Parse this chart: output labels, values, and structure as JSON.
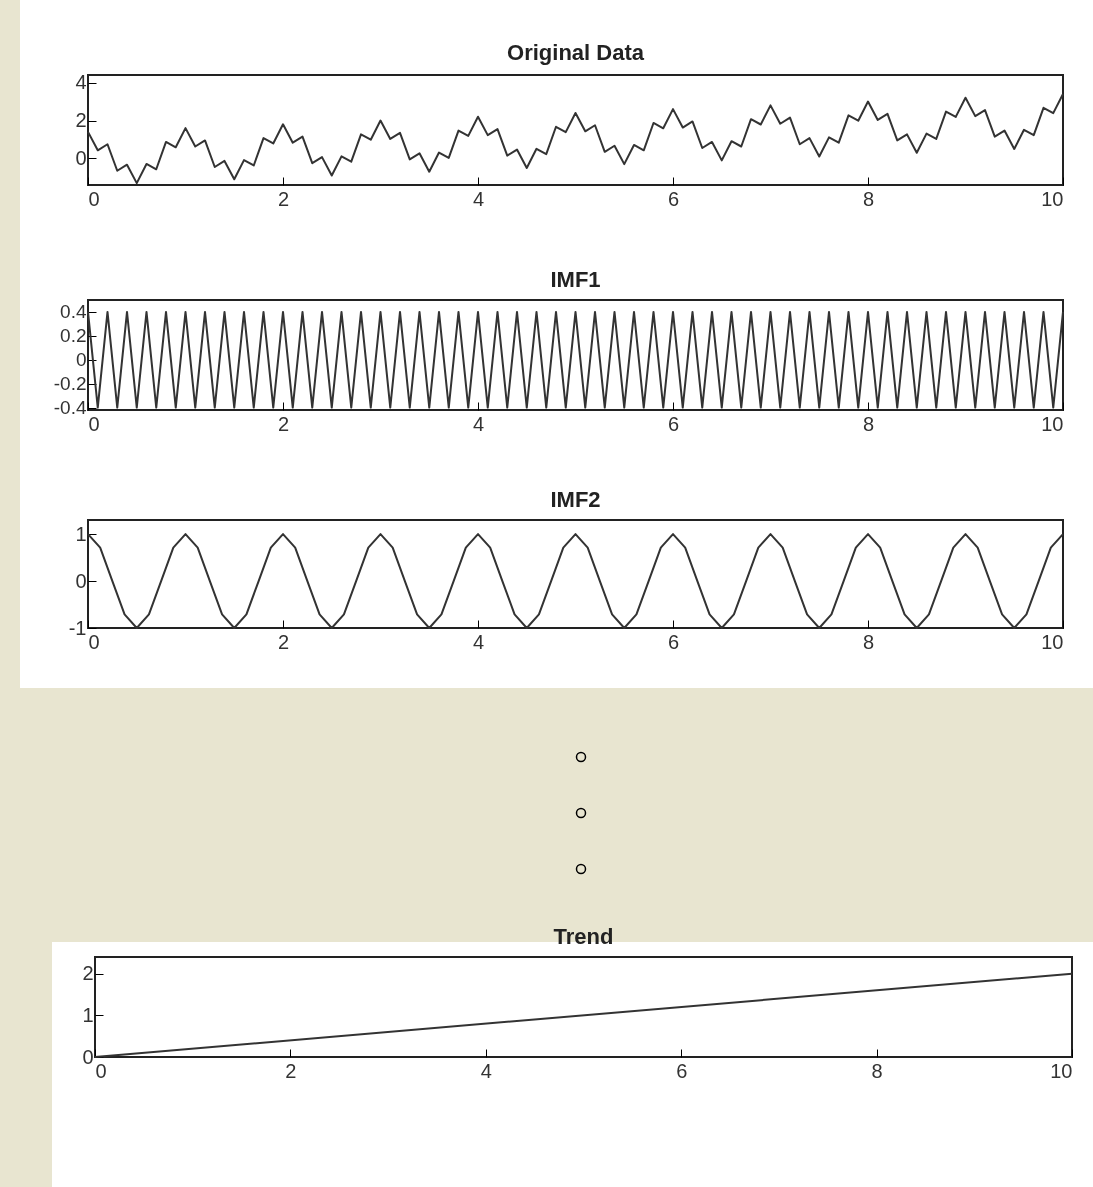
{
  "chart_data": [
    {
      "type": "line",
      "title": "Original Data",
      "xlim": [
        0,
        10
      ],
      "xticks": [
        0,
        2,
        4,
        6,
        8,
        10
      ],
      "ylim": [
        -1.4,
        4.4
      ],
      "yticks": [
        0,
        2,
        4
      ],
      "grid": false,
      "series": [
        {
          "color": "#333333",
          "x": [
            0,
            0.1,
            0.2,
            0.3,
            0.4,
            0.5,
            0.6,
            0.7,
            0.8,
            0.9,
            1,
            1.1,
            1.2,
            1.3,
            1.4,
            1.5,
            1.6,
            1.7,
            1.8,
            1.9,
            2,
            2.1,
            2.2,
            2.3,
            2.4,
            2.5,
            2.6,
            2.7,
            2.8,
            2.9,
            3,
            3.1,
            3.2,
            3.3,
            3.4,
            3.5,
            3.6,
            3.7,
            3.8,
            3.9,
            4,
            4.1,
            4.2,
            4.3,
            4.4,
            4.5,
            4.6,
            4.7,
            4.8,
            4.9,
            5,
            5.1,
            5.2,
            5.3,
            5.4,
            5.5,
            5.6,
            5.7,
            5.8,
            5.9,
            6,
            6.1,
            6.2,
            6.3,
            6.4,
            6.5,
            6.6,
            6.7,
            6.8,
            6.9,
            7,
            7.1,
            7.2,
            7.3,
            7.4,
            7.5,
            7.6,
            7.7,
            7.8,
            7.9,
            8,
            8.1,
            8.2,
            8.3,
            8.4,
            8.5,
            8.6,
            8.7,
            8.8,
            8.9,
            9,
            9.1,
            9.2,
            9.3,
            9.4,
            9.5,
            9.6,
            9.7,
            9.8,
            9.9,
            10
          ],
          "values": [
            1.4,
            0.43,
            0.75,
            -0.65,
            -0.33,
            -1.3,
            -0.29,
            -0.57,
            0.87,
            0.59,
            1.6,
            0.63,
            0.95,
            -0.45,
            -0.13,
            -1.1,
            -0.09,
            -0.37,
            1.07,
            0.79,
            1.8,
            0.83,
            1.15,
            -0.25,
            0.07,
            -0.9,
            0.11,
            -0.17,
            1.27,
            0.99,
            2.0,
            1.03,
            1.35,
            -0.05,
            0.27,
            -0.7,
            0.31,
            0.03,
            1.47,
            1.19,
            2.2,
            1.23,
            1.55,
            0.15,
            0.47,
            -0.5,
            0.51,
            0.23,
            1.67,
            1.39,
            2.4,
            1.43,
            1.75,
            0.35,
            0.67,
            -0.3,
            0.71,
            0.43,
            1.87,
            1.59,
            2.6,
            1.63,
            1.95,
            0.55,
            0.87,
            -0.1,
            0.91,
            0.63,
            2.07,
            1.79,
            2.8,
            1.83,
            2.15,
            0.75,
            1.07,
            0.1,
            1.11,
            0.83,
            2.27,
            1.99,
            3.0,
            2.03,
            2.35,
            0.95,
            1.27,
            0.3,
            1.31,
            1.03,
            2.47,
            2.19,
            3.2,
            2.23,
            2.55,
            1.15,
            1.47,
            0.5,
            1.51,
            1.23,
            2.67,
            2.39,
            3.4
          ]
        }
      ]
    },
    {
      "type": "line",
      "title": "IMF1",
      "xlim": [
        0,
        10
      ],
      "xticks": [
        0,
        2,
        4,
        6,
        8,
        10
      ],
      "ylim": [
        -0.42,
        0.5
      ],
      "yticks": [
        -0.4,
        -0.2,
        0,
        0.2,
        0.4
      ],
      "grid": false,
      "series": [
        {
          "color": "#333333",
          "x": [
            0,
            0.1,
            0.2,
            0.3,
            0.4,
            0.5,
            0.6,
            0.7,
            0.8,
            0.9,
            1,
            1.1,
            1.2,
            1.3,
            1.4,
            1.5,
            1.6,
            1.7,
            1.8,
            1.9,
            2,
            2.1,
            2.2,
            2.3,
            2.4,
            2.5,
            2.6,
            2.7,
            2.8,
            2.9,
            3,
            3.1,
            3.2,
            3.3,
            3.4,
            3.5,
            3.6,
            3.7,
            3.8,
            3.9,
            4,
            4.1,
            4.2,
            4.3,
            4.4,
            4.5,
            4.6,
            4.7,
            4.8,
            4.9,
            5,
            5.1,
            5.2,
            5.3,
            5.4,
            5.5,
            5.6,
            5.7,
            5.8,
            5.9,
            6,
            6.1,
            6.2,
            6.3,
            6.4,
            6.5,
            6.6,
            6.7,
            6.8,
            6.9,
            7,
            7.1,
            7.2,
            7.3,
            7.4,
            7.5,
            7.6,
            7.7,
            7.8,
            7.9,
            8,
            8.1,
            8.2,
            8.3,
            8.4,
            8.5,
            8.6,
            8.7,
            8.8,
            8.9,
            9,
            9.1,
            9.2,
            9.3,
            9.4,
            9.5,
            9.6,
            9.7,
            9.8,
            9.9,
            10
          ],
          "values": [
            0.4,
            -0.4,
            0.4,
            -0.4,
            0.4,
            -0.4,
            0.4,
            -0.4,
            0.4,
            -0.4,
            0.4,
            -0.4,
            0.4,
            -0.4,
            0.4,
            -0.4,
            0.4,
            -0.4,
            0.4,
            -0.4,
            0.4,
            -0.4,
            0.4,
            -0.4,
            0.4,
            -0.4,
            0.4,
            -0.4,
            0.4,
            -0.4,
            0.4,
            -0.4,
            0.4,
            -0.4,
            0.4,
            -0.4,
            0.4,
            -0.4,
            0.4,
            -0.4,
            0.4,
            -0.4,
            0.4,
            -0.4,
            0.4,
            -0.4,
            0.4,
            -0.4,
            0.4,
            -0.4,
            0.4,
            -0.4,
            0.4,
            -0.4,
            0.4,
            -0.4,
            0.4,
            -0.4,
            0.4,
            -0.4,
            0.4,
            -0.4,
            0.4,
            -0.4,
            0.4,
            -0.4,
            0.4,
            -0.4,
            0.4,
            -0.4,
            0.4,
            -0.4,
            0.4,
            -0.4,
            0.4,
            -0.4,
            0.4,
            -0.4,
            0.4,
            -0.4,
            0.4,
            -0.4,
            0.4,
            -0.4,
            0.4,
            -0.4,
            0.4,
            -0.4,
            0.4,
            -0.4,
            0.4,
            -0.4,
            0.4,
            -0.4,
            0.4,
            -0.4,
            0.4,
            -0.4,
            0.4,
            -0.4,
            0.4
          ]
        }
      ]
    },
    {
      "type": "line",
      "title": "IMF2",
      "xlim": [
        0,
        10
      ],
      "xticks": [
        0,
        2,
        4,
        6,
        8,
        10
      ],
      "ylim": [
        -1,
        1.3
      ],
      "yticks": [
        -1,
        0,
        1
      ],
      "grid": false,
      "series": [
        {
          "color": "#333333",
          "x": [
            0,
            0.125,
            0.25,
            0.375,
            0.5,
            0.625,
            0.75,
            0.875,
            1,
            1.125,
            1.25,
            1.375,
            1.5,
            1.625,
            1.75,
            1.875,
            2,
            2.125,
            2.25,
            2.375,
            2.5,
            2.625,
            2.75,
            2.875,
            3,
            3.125,
            3.25,
            3.375,
            3.5,
            3.625,
            3.75,
            3.875,
            4,
            4.125,
            4.25,
            4.375,
            4.5,
            4.625,
            4.75,
            4.875,
            5,
            5.125,
            5.25,
            5.375,
            5.5,
            5.625,
            5.75,
            5.875,
            6,
            6.125,
            6.25,
            6.375,
            6.5,
            6.625,
            6.75,
            6.875,
            7,
            7.125,
            7.25,
            7.375,
            7.5,
            7.625,
            7.75,
            7.875,
            8,
            8.125,
            8.25,
            8.375,
            8.5,
            8.625,
            8.75,
            8.875,
            9,
            9.125,
            9.25,
            9.375,
            9.5,
            9.625,
            9.75,
            9.875,
            10
          ],
          "values": [
            1,
            0.71,
            0,
            -0.71,
            -1,
            -0.71,
            0,
            0.71,
            1,
            0.71,
            0,
            -0.71,
            -1,
            -0.71,
            0,
            0.71,
            1,
            0.71,
            0,
            -0.71,
            -1,
            -0.71,
            0,
            0.71,
            1,
            0.71,
            0,
            -0.71,
            -1,
            -0.71,
            0,
            0.71,
            1,
            0.71,
            0,
            -0.71,
            -1,
            -0.71,
            0,
            0.71,
            1,
            0.71,
            0,
            -0.71,
            -1,
            -0.71,
            0,
            0.71,
            1,
            0.71,
            0,
            -0.71,
            -1,
            -0.71,
            0,
            0.71,
            1,
            0.71,
            0,
            -0.71,
            -1,
            -0.71,
            0,
            0.71,
            1,
            0.71,
            0,
            -0.71,
            -1,
            -0.71,
            0,
            0.71,
            1,
            0.71,
            0,
            -0.71,
            -1,
            -0.71,
            0,
            0.71,
            1
          ]
        }
      ]
    },
    {
      "type": "line",
      "title": "Trend",
      "xlim": [
        0,
        10
      ],
      "xticks": [
        0,
        2,
        4,
        6,
        8,
        10
      ],
      "ylim": [
        0,
        2.4
      ],
      "yticks": [
        0,
        1,
        2
      ],
      "grid": false,
      "series": [
        {
          "color": "#333333",
          "x": [
            0,
            10
          ],
          "values": [
            0,
            2
          ]
        }
      ]
    }
  ]
}
